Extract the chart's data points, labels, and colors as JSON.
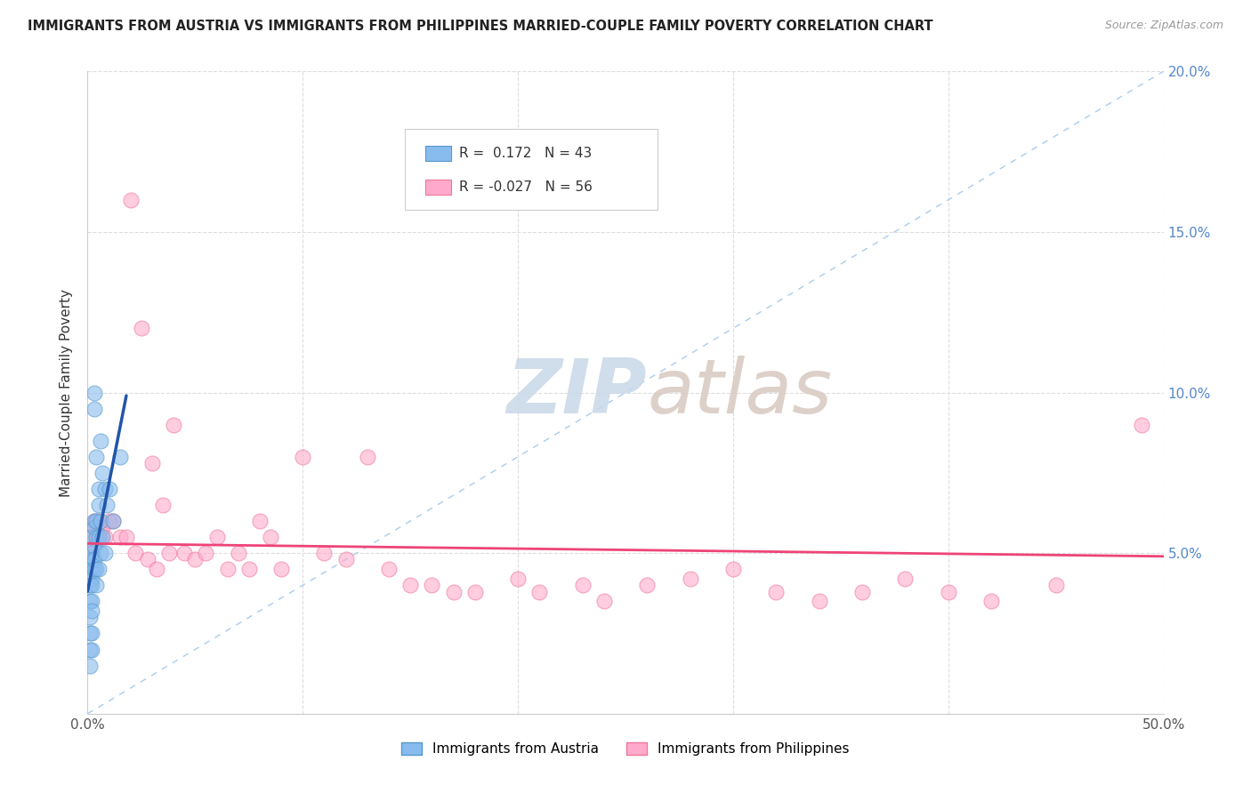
{
  "title": "IMMIGRANTS FROM AUSTRIA VS IMMIGRANTS FROM PHILIPPINES MARRIED-COUPLE FAMILY POVERTY CORRELATION CHART",
  "source": "Source: ZipAtlas.com",
  "ylabel": "Married-Couple Family Poverty",
  "xlim": [
    0.0,
    0.5
  ],
  "ylim": [
    0.0,
    0.2
  ],
  "xticks": [
    0.0,
    0.1,
    0.2,
    0.3,
    0.4,
    0.5
  ],
  "yticks": [
    0.0,
    0.05,
    0.1,
    0.15,
    0.2
  ],
  "xticklabels": [
    "0.0%",
    "",
    "",
    "",
    "",
    "50.0%"
  ],
  "yticklabels_right": [
    "",
    "5.0%",
    "10.0%",
    "15.0%",
    "20.0%"
  ],
  "austria_color": "#88BBEE",
  "austria_edge_color": "#5599CC",
  "philippines_color": "#FFAACC",
  "philippines_edge_color": "#EE7799",
  "austria_R": 0.172,
  "austria_N": 43,
  "philippines_R": -0.027,
  "philippines_N": 56,
  "austria_x": [
    0.001,
    0.001,
    0.001,
    0.001,
    0.001,
    0.001,
    0.002,
    0.002,
    0.002,
    0.002,
    0.002,
    0.002,
    0.002,
    0.002,
    0.002,
    0.002,
    0.003,
    0.003,
    0.003,
    0.003,
    0.003,
    0.003,
    0.003,
    0.004,
    0.004,
    0.004,
    0.004,
    0.004,
    0.005,
    0.005,
    0.005,
    0.005,
    0.006,
    0.006,
    0.006,
    0.007,
    0.007,
    0.008,
    0.008,
    0.009,
    0.01,
    0.012,
    0.015
  ],
  "austria_y": [
    0.04,
    0.035,
    0.03,
    0.025,
    0.02,
    0.015,
    0.055,
    0.05,
    0.048,
    0.045,
    0.042,
    0.04,
    0.035,
    0.032,
    0.025,
    0.02,
    0.1,
    0.095,
    0.06,
    0.058,
    0.052,
    0.048,
    0.045,
    0.08,
    0.06,
    0.055,
    0.045,
    0.04,
    0.07,
    0.065,
    0.055,
    0.045,
    0.085,
    0.06,
    0.05,
    0.075,
    0.055,
    0.07,
    0.05,
    0.065,
    0.07,
    0.06,
    0.08
  ],
  "philippines_x": [
    0.001,
    0.001,
    0.002,
    0.003,
    0.004,
    0.005,
    0.006,
    0.007,
    0.008,
    0.01,
    0.012,
    0.015,
    0.018,
    0.02,
    0.022,
    0.025,
    0.028,
    0.03,
    0.032,
    0.035,
    0.038,
    0.04,
    0.045,
    0.05,
    0.055,
    0.06,
    0.065,
    0.07,
    0.075,
    0.08,
    0.085,
    0.09,
    0.1,
    0.11,
    0.12,
    0.13,
    0.14,
    0.15,
    0.16,
    0.17,
    0.18,
    0.2,
    0.21,
    0.23,
    0.24,
    0.26,
    0.28,
    0.3,
    0.32,
    0.34,
    0.36,
    0.38,
    0.4,
    0.42,
    0.45,
    0.49
  ],
  "philippines_y": [
    0.055,
    0.05,
    0.055,
    0.06,
    0.058,
    0.06,
    0.055,
    0.058,
    0.055,
    0.06,
    0.06,
    0.055,
    0.055,
    0.16,
    0.05,
    0.12,
    0.048,
    0.078,
    0.045,
    0.065,
    0.05,
    0.09,
    0.05,
    0.048,
    0.05,
    0.055,
    0.045,
    0.05,
    0.045,
    0.06,
    0.055,
    0.045,
    0.08,
    0.05,
    0.048,
    0.08,
    0.045,
    0.04,
    0.04,
    0.038,
    0.038,
    0.042,
    0.038,
    0.04,
    0.035,
    0.04,
    0.042,
    0.045,
    0.038,
    0.035,
    0.038,
    0.042,
    0.038,
    0.035,
    0.04,
    0.09
  ],
  "watermark_zip": "ZIP",
  "watermark_atlas": "atlas",
  "background_color": "#FFFFFF",
  "grid_color": "#DDDDDD",
  "right_axis_color": "#5588CC",
  "diag_color": "#AACCEE",
  "austria_reg_color": "#2255AA",
  "philippines_reg_color": "#EE4477"
}
